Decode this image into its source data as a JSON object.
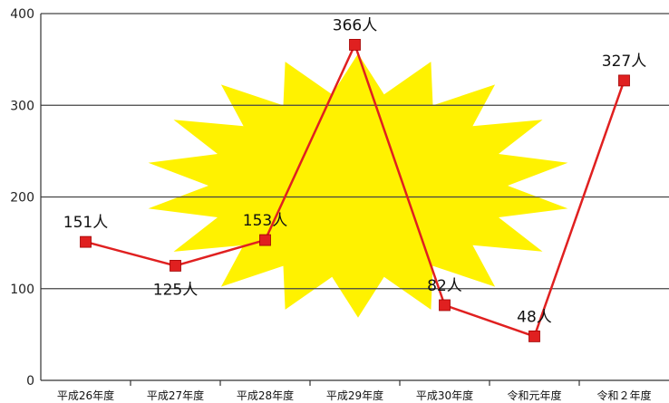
{
  "chart_data": {
    "type": "line",
    "categories": [
      "平成26年度",
      "平成27年度",
      "平成28年度",
      "平成29年度",
      "平成30年度",
      "令和元年度",
      "令和２年度"
    ],
    "series": [
      {
        "values": [
          151,
          125,
          153,
          366,
          82,
          48,
          327
        ],
        "color": "#e02020"
      }
    ],
    "data_labels": [
      "151人",
      "125人",
      "153人",
      "366人",
      "82人",
      "48人",
      "327人"
    ],
    "yticks": [
      "0",
      "100",
      "200",
      "300",
      "400"
    ],
    "ylim": [
      0,
      400
    ],
    "title": "",
    "xlabel": "",
    "ylabel": "",
    "grid": true,
    "legend": "none",
    "background_burst_color": "#fff200",
    "grid_color": "#444444"
  }
}
